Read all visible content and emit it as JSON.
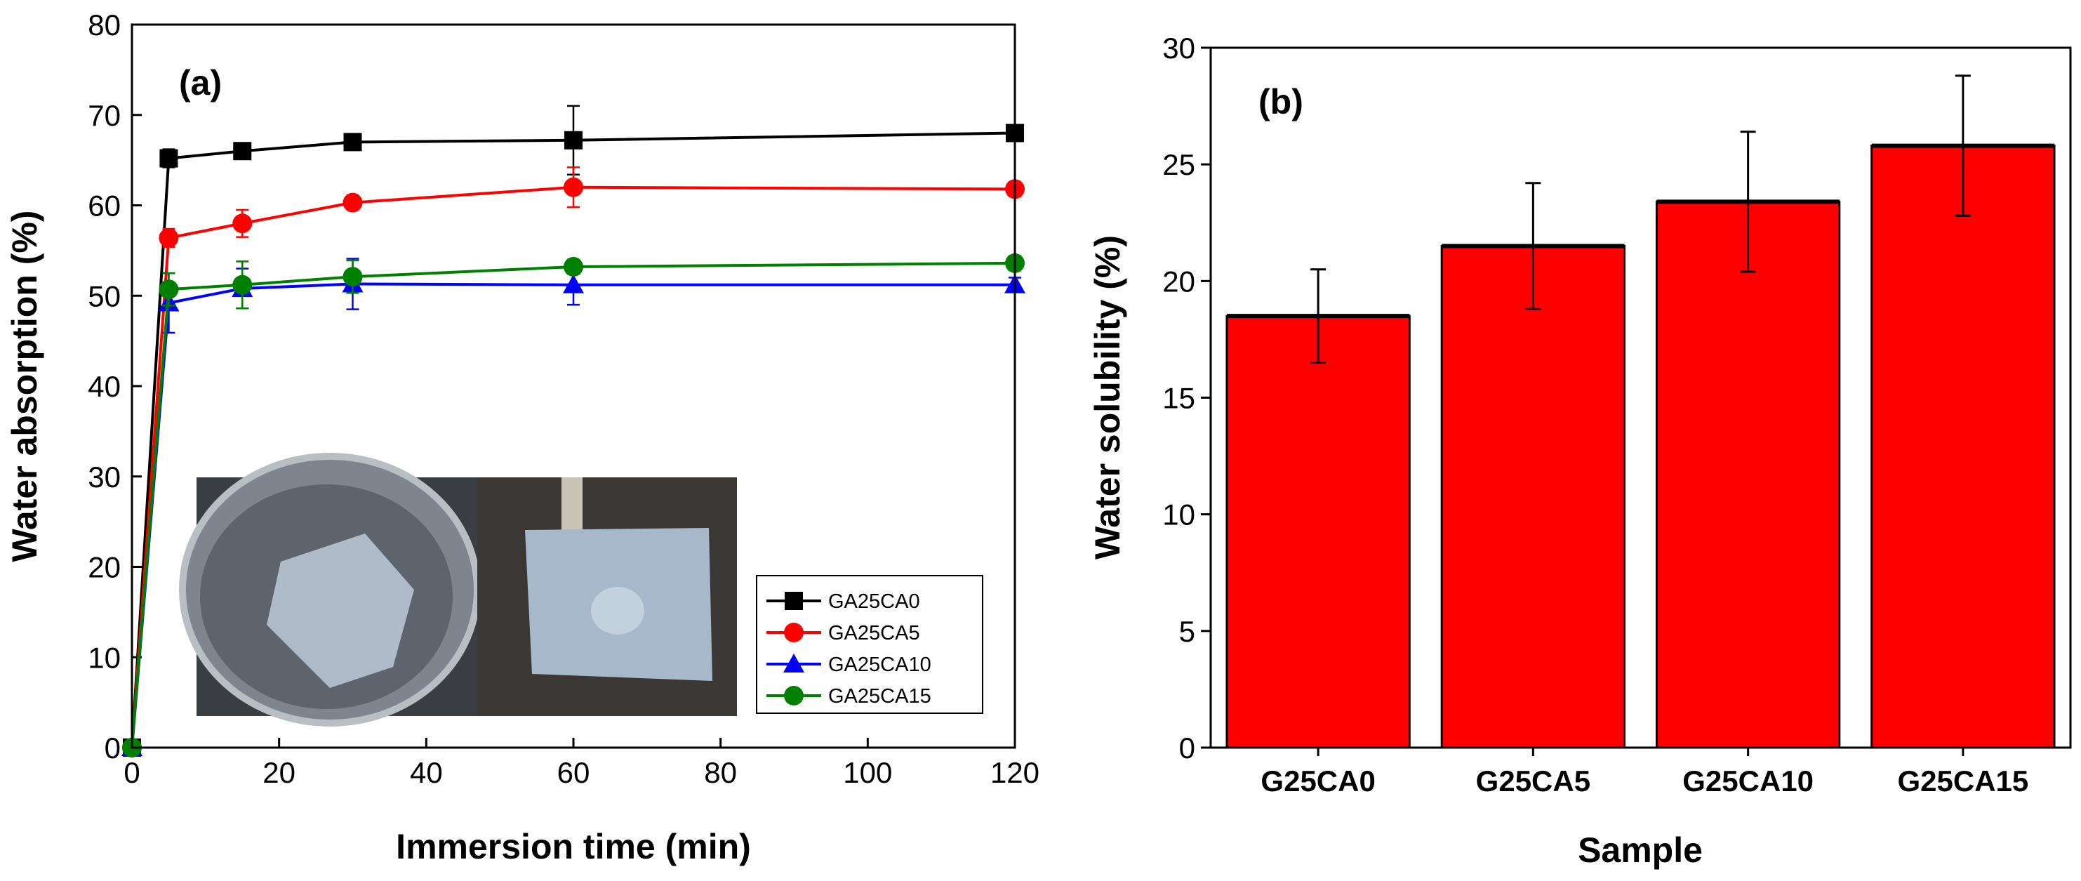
{
  "chart_data": [
    {
      "type": "line",
      "panel_label": "(a)",
      "xlabel": "Immersion time (min)",
      "ylabel": "Water absorption (%)",
      "xlim": [
        0,
        120
      ],
      "ylim": [
        0,
        80
      ],
      "xticks": [
        0,
        20,
        40,
        60,
        80,
        100,
        120
      ],
      "yticks": [
        0,
        10,
        20,
        30,
        40,
        50,
        60,
        70,
        80
      ],
      "x": [
        0,
        5,
        15,
        30,
        60,
        120
      ],
      "legend_position": "bottom-right",
      "series": [
        {
          "name": "GA25CA0",
          "marker": "square",
          "color": "#000000",
          "values": [
            0,
            65.2,
            66.0,
            67.0,
            67.2,
            68.0
          ],
          "errors": [
            0,
            1.0,
            0.8,
            0.8,
            3.8,
            0.8
          ]
        },
        {
          "name": "GA25CA5",
          "marker": "circle",
          "color": "#ff0000",
          "values": [
            0,
            56.4,
            58.0,
            60.3,
            62.0,
            61.8
          ],
          "errors": [
            0,
            1.0,
            1.5,
            0.8,
            2.2,
            0.8
          ]
        },
        {
          "name": "GA25CA10",
          "marker": "triangle",
          "color": "#0000ff",
          "values": [
            0,
            49.2,
            50.8,
            51.3,
            51.2,
            51.2
          ],
          "errors": [
            0,
            3.3,
            2.2,
            2.8,
            2.2,
            0.8
          ]
        },
        {
          "name": "GA25CA15",
          "marker": "circle",
          "color": "#008000",
          "values": [
            0,
            50.7,
            51.2,
            52.1,
            53.2,
            53.6
          ],
          "errors": [
            0,
            1.8,
            2.6,
            1.8,
            0.8,
            0.8
          ]
        }
      ],
      "inset": "photographs: film immersed in water in a glass beaker; swollen film held with tweezers"
    },
    {
      "type": "bar",
      "panel_label": "(b)",
      "xlabel": "Sample",
      "ylabel": "Water solubility (%)",
      "ylim": [
        0,
        30
      ],
      "yticks": [
        0,
        5,
        10,
        15,
        20,
        25,
        30
      ],
      "categories": [
        "G25CA0",
        "G25CA5",
        "G25CA10",
        "G25CA15"
      ],
      "values": [
        18.5,
        21.5,
        23.4,
        25.8
      ],
      "errors": [
        2.0,
        2.7,
        3.0,
        3.0
      ],
      "bar_color": "#ff0000"
    }
  ]
}
